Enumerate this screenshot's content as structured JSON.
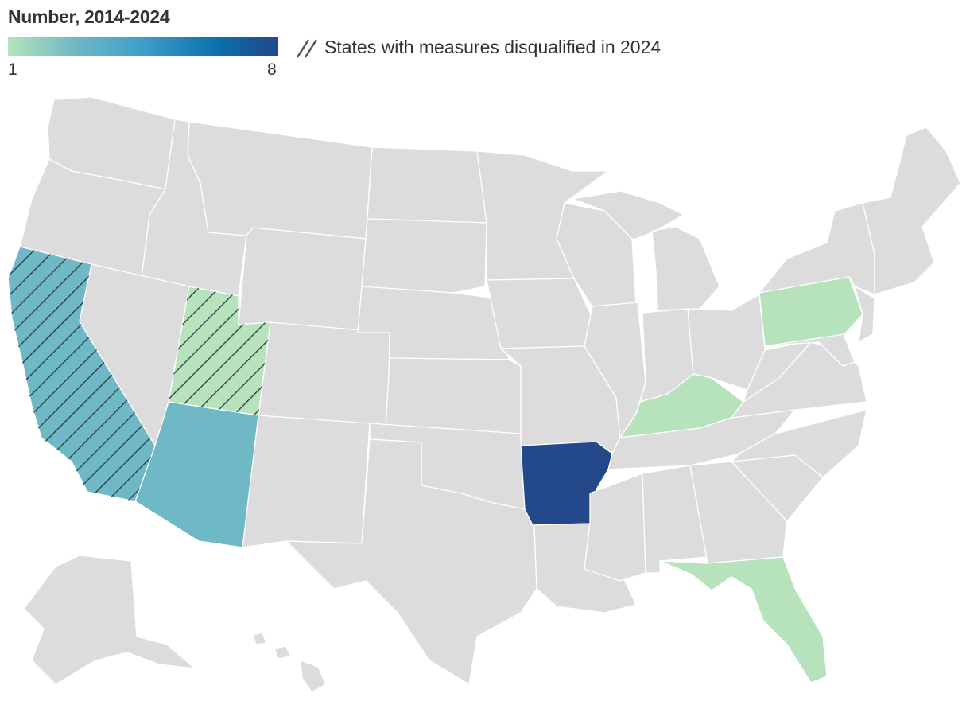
{
  "legend": {
    "title": "Number, 2014-2024",
    "min_label": "1",
    "max_label": "8",
    "hatch_label": "States with measures disqualified in 2024",
    "gradient_colors": [
      "#b6e3bb",
      "#6fb8c5",
      "#3e9fc9",
      "#0a6eab",
      "#23498a"
    ]
  },
  "colors": {
    "no_data": "#dcdcdc",
    "border": "#ffffff",
    "hatch_stroke": "#2b3a40"
  },
  "states": [
    {
      "name": "California",
      "value": 3,
      "color": "#6fb8c5",
      "disqualified_2024": true
    },
    {
      "name": "Arizona",
      "value": 3,
      "color": "#6fb8c5",
      "disqualified_2024": false
    },
    {
      "name": "Utah",
      "value": 1,
      "color": "#b6e3bb",
      "disqualified_2024": true
    },
    {
      "name": "Arkansas",
      "value": 8,
      "color": "#23498a",
      "disqualified_2024": false
    },
    {
      "name": "Kentucky",
      "value": 1,
      "color": "#b6e3bb",
      "disqualified_2024": false
    },
    {
      "name": "Pennsylvania",
      "value": 1,
      "color": "#b6e3bb",
      "disqualified_2024": false
    },
    {
      "name": "Florida",
      "value": 1,
      "color": "#b6e3bb",
      "disqualified_2024": false
    }
  ]
}
